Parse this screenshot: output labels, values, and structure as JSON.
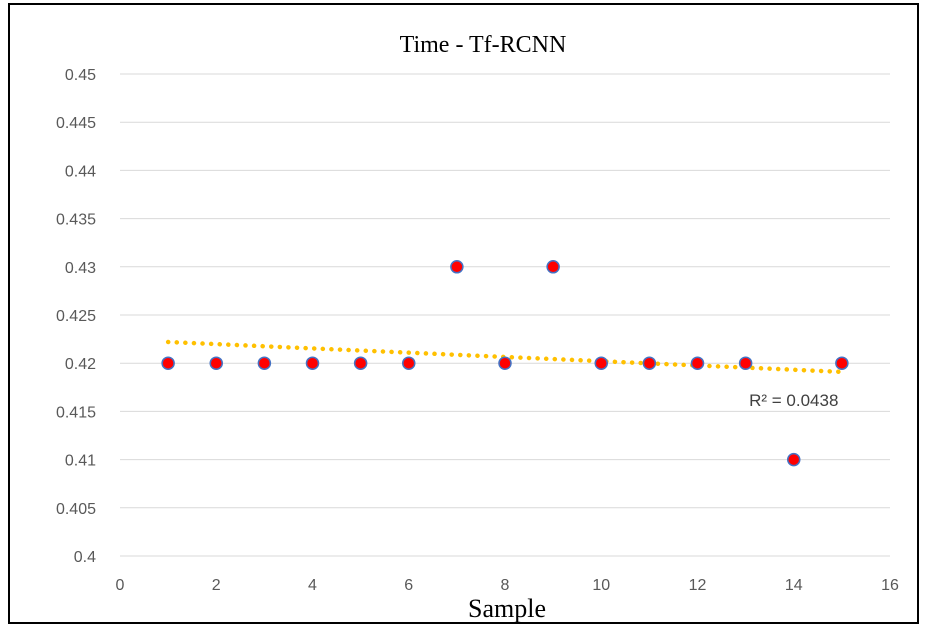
{
  "chart_data": {
    "type": "scatter",
    "title": "Time - Tf-RCNN",
    "xlabel": "Sample",
    "ylabel": "",
    "xlim": [
      0,
      16
    ],
    "ylim": [
      0.4,
      0.45
    ],
    "x_ticks": [
      0,
      2,
      4,
      6,
      8,
      10,
      12,
      14,
      16
    ],
    "y_ticks": [
      0.4,
      0.405,
      0.41,
      0.415,
      0.42,
      0.425,
      0.43,
      0.435,
      0.44,
      0.445,
      0.45
    ],
    "x_tick_labels": [
      "0",
      "2",
      "4",
      "6",
      "8",
      "10",
      "12",
      "14",
      "16"
    ],
    "y_tick_labels": [
      "0.4",
      "0.405",
      "0.41",
      "0.415",
      "0.42",
      "0.425",
      "0.43",
      "0.435",
      "0.44",
      "0.445",
      "0.45"
    ],
    "grid": true,
    "series": [
      {
        "x": [
          1,
          2,
          3,
          4,
          5,
          6,
          7,
          8,
          9,
          10,
          11,
          12,
          13,
          14,
          15
        ],
        "y": [
          0.42,
          0.42,
          0.42,
          0.42,
          0.42,
          0.42,
          0.43,
          0.42,
          0.43,
          0.42,
          0.42,
          0.42,
          0.42,
          0.41,
          0.42
        ],
        "marker_color": "#ff0000",
        "marker_edge_color": "#4472c4"
      }
    ],
    "trendline": {
      "type": "linear",
      "x_range": [
        1,
        15
      ],
      "y_start": 0.4222,
      "y_end": 0.4191,
      "color": "#ffc000",
      "style": "dotted"
    },
    "annotations": [
      {
        "text": "R² = 0.0438",
        "x": 14,
        "y": 0.4162
      }
    ]
  }
}
